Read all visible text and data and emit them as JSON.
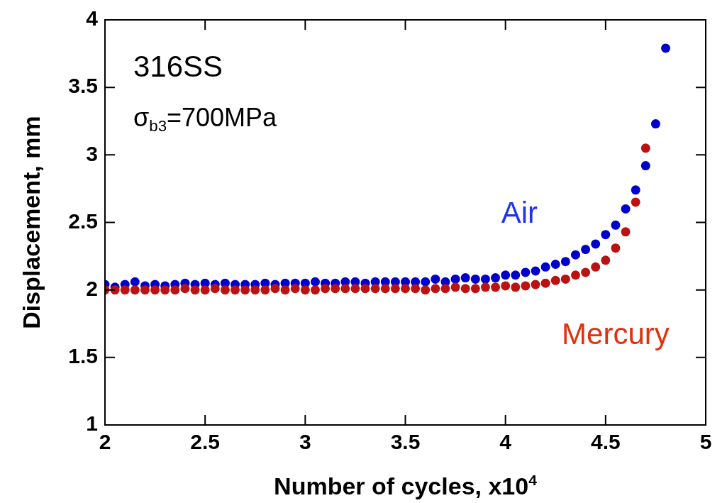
{
  "chart_data": {
    "type": "scatter",
    "xlabel": "Number of cycles, x10$^{4}$",
    "ylabel": "Displacement, mm",
    "xlim": [
      2,
      5
    ],
    "xticks": [
      2,
      2.5,
      3,
      3.5,
      4,
      4.5,
      5
    ],
    "ylim": [
      1,
      4
    ],
    "yticks": [
      1,
      1.5,
      2,
      2.5,
      3,
      3.5,
      4
    ],
    "grid": false,
    "legend": false,
    "marker": "circle",
    "annotations": [
      "316SS",
      "σ$_{b3}$=700MPa"
    ],
    "series": [
      {
        "name": "Air",
        "color": "#0000cc",
        "x": [
          2,
          2.05,
          2.1,
          2.15,
          2.2,
          2.25,
          2.3,
          2.35,
          2.4,
          2.45,
          2.5,
          2.55,
          2.6,
          2.65,
          2.7,
          2.75,
          2.8,
          2.85,
          2.9,
          2.95,
          3,
          3.05,
          3.1,
          3.15,
          3.2,
          3.25,
          3.3,
          3.35,
          3.4,
          3.45,
          3.5,
          3.55,
          3.6,
          3.65,
          3.7,
          3.75,
          3.8,
          3.85,
          3.9,
          3.95,
          4,
          4.05,
          4.1,
          4.15,
          4.2,
          4.25,
          4.3,
          4.35,
          4.4,
          4.45,
          4.5,
          4.55,
          4.6,
          4.65,
          4.7,
          4.75,
          4.8
        ],
        "values": [
          2.04,
          2.02,
          2.04,
          2.06,
          2.03,
          2.04,
          2.03,
          2.04,
          2.05,
          2.04,
          2.05,
          2.04,
          2.05,
          2.04,
          2.04,
          2.04,
          2.05,
          2.04,
          2.05,
          2.05,
          2.05,
          2.06,
          2.05,
          2.05,
          2.06,
          2.06,
          2.05,
          2.06,
          2.06,
          2.06,
          2.06,
          2.06,
          2.06,
          2.08,
          2.06,
          2.08,
          2.09,
          2.08,
          2.08,
          2.09,
          2.11,
          2.11,
          2.13,
          2.14,
          2.17,
          2.19,
          2.21,
          2.26,
          2.3,
          2.34,
          2.41,
          2.48,
          2.6,
          2.74,
          2.92,
          3.23,
          3.79
        ]
      },
      {
        "name": "Mercury",
        "color": "#bb1111",
        "x": [
          2,
          2.05,
          2.1,
          2.15,
          2.2,
          2.25,
          2.3,
          2.35,
          2.4,
          2.45,
          2.5,
          2.55,
          2.6,
          2.65,
          2.7,
          2.75,
          2.8,
          2.85,
          2.9,
          2.95,
          3,
          3.05,
          3.1,
          3.15,
          3.2,
          3.25,
          3.3,
          3.35,
          3.4,
          3.45,
          3.5,
          3.55,
          3.6,
          3.65,
          3.7,
          3.75,
          3.8,
          3.85,
          3.9,
          3.95,
          4,
          4.05,
          4.1,
          4.15,
          4.2,
          4.25,
          4.3,
          4.35,
          4.4,
          4.45,
          4.5,
          4.55,
          4.6,
          4.65,
          4.7
        ],
        "values": [
          2,
          2,
          2,
          2,
          2,
          2,
          2,
          2,
          2.01,
          2,
          2,
          2.01,
          2,
          2,
          2,
          2,
          2,
          2.01,
          2,
          2.01,
          2,
          2,
          2.01,
          2.01,
          2.01,
          2.01,
          2.01,
          2.01,
          2.01,
          2.01,
          2.01,
          2.01,
          2,
          2.01,
          2.01,
          2.02,
          2.01,
          2.01,
          2.02,
          2.02,
          2.03,
          2.02,
          2.03,
          2.04,
          2.05,
          2.07,
          2.08,
          2.11,
          2.13,
          2.17,
          2.22,
          2.31,
          2.43,
          2.65,
          3.05
        ]
      }
    ]
  }
}
